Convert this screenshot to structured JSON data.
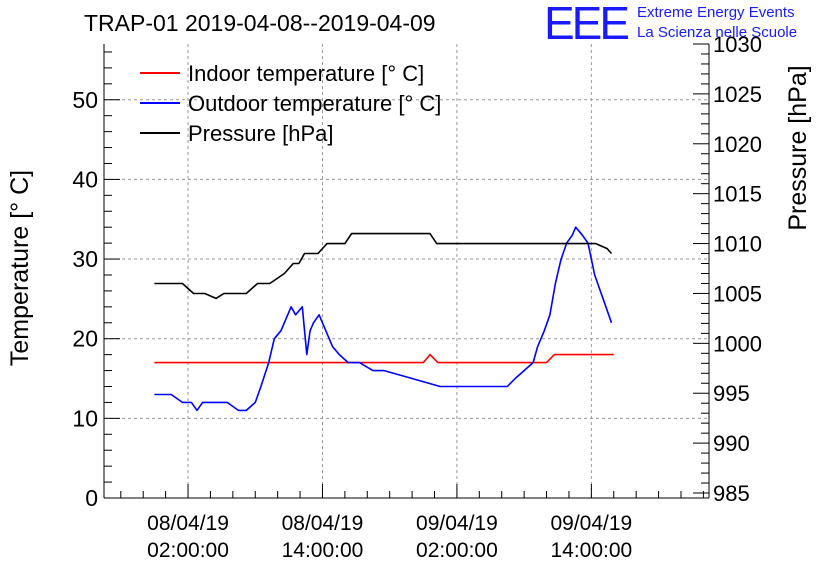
{
  "title": "TRAP-01 2019-04-08--2019-04-09",
  "logo": {
    "mark": "EEE",
    "line1": "Extreme Energy Events",
    "line2": "La Scienza nelle Scuole",
    "color": "#1a1aff"
  },
  "chart_data": {
    "type": "line",
    "title": "TRAP-01 2019-04-08--2019-04-09",
    "xlabel": "",
    "ylabel_left": "Temperature [° C]",
    "ylabel_right": "Pressure [hPa]",
    "y_left_lim": [
      0,
      57
    ],
    "y_right_lim": [
      984.5,
      1030
    ],
    "y_left_ticks": [
      0,
      10,
      20,
      30,
      40,
      50
    ],
    "y_right_ticks": [
      985,
      990,
      995,
      1000,
      1005,
      1010,
      1015,
      1020,
      1025,
      1030
    ],
    "x_unit": "hours since 2019-04-08 00:00",
    "x_lim": [
      -5.5,
      48.5
    ],
    "x_ticks": [
      {
        "x": 2,
        "line1": "08/04/19",
        "line2": "02:00:00"
      },
      {
        "x": 14,
        "line1": "08/04/19",
        "line2": "14:00:00"
      },
      {
        "x": 26,
        "line1": "09/04/19",
        "line2": "02:00:00"
      },
      {
        "x": 38,
        "line1": "09/04/19",
        "line2": "14:00:00"
      }
    ],
    "grid": true,
    "legend": "top-left",
    "series": [
      {
        "name": "Indoor temperature [° C]",
        "color": "#ff0000",
        "axis": "left",
        "x": [
          -1,
          23,
          23.6,
          24.3,
          34,
          34.7,
          36,
          40
        ],
        "y": [
          17,
          17,
          18,
          17,
          17,
          18,
          18,
          18
        ]
      },
      {
        "name": "Outdoor temperature [° C]",
        "color": "#0000ff",
        "axis": "left",
        "x": [
          -1,
          0.5,
          1.5,
          2.3,
          2.8,
          3.3,
          3.8,
          4.5,
          5.5,
          6.5,
          7.2,
          8,
          8.5,
          9.2,
          9.7,
          10.3,
          11.2,
          11.6,
          12.2,
          12.6,
          12.9,
          13.2,
          13.7,
          14.3,
          14.9,
          15.5,
          16.3,
          17.3,
          18.5,
          19.5,
          22,
          24.5,
          26.5,
          28.5,
          30.5,
          31.2,
          32,
          32.8,
          33.2,
          33.8,
          34.3,
          34.8,
          35.3,
          35.8,
          36.3,
          36.6,
          37.2,
          37.7,
          38.3,
          38.8,
          39.3,
          39.8
        ],
        "y": [
          13,
          13,
          12,
          12,
          11,
          12,
          12,
          12,
          12,
          11,
          11,
          12,
          14,
          17,
          20,
          21,
          24,
          23,
          24,
          18,
          21,
          22,
          23,
          21,
          19,
          18,
          17,
          17,
          16,
          16,
          15,
          14,
          14,
          14,
          14,
          15,
          16,
          17,
          19,
          21,
          23,
          27,
          30,
          32,
          33,
          34,
          33,
          32,
          28,
          26,
          24,
          22
        ]
      },
      {
        "name": "Pressure [hPa]",
        "color": "#000000",
        "axis": "right",
        "x": [
          -1,
          1.5,
          2.5,
          3.5,
          4.5,
          5.2,
          6,
          7.2,
          8.2,
          9.3,
          10.6,
          11.4,
          11.9,
          12.4,
          13.6,
          14.4,
          16,
          16.6,
          17.6,
          21.8,
          22.4,
          23,
          23.6,
          24.2,
          25.5,
          28,
          30,
          32,
          33,
          34,
          35,
          36,
          36.8,
          37.6,
          38.4,
          39,
          39.4,
          39.8
        ],
        "y": [
          1006,
          1006,
          1005,
          1005,
          1004.5,
          1005,
          1005,
          1005,
          1006,
          1006,
          1007,
          1008,
          1008,
          1009,
          1009,
          1010,
          1010,
          1011,
          1011,
          1011,
          1011,
          1011,
          1011,
          1010,
          1010,
          1010,
          1010,
          1010,
          1010,
          1010,
          1010,
          1010,
          1010,
          1010,
          1010,
          1009.7,
          1009.5,
          1009
        ]
      }
    ]
  }
}
